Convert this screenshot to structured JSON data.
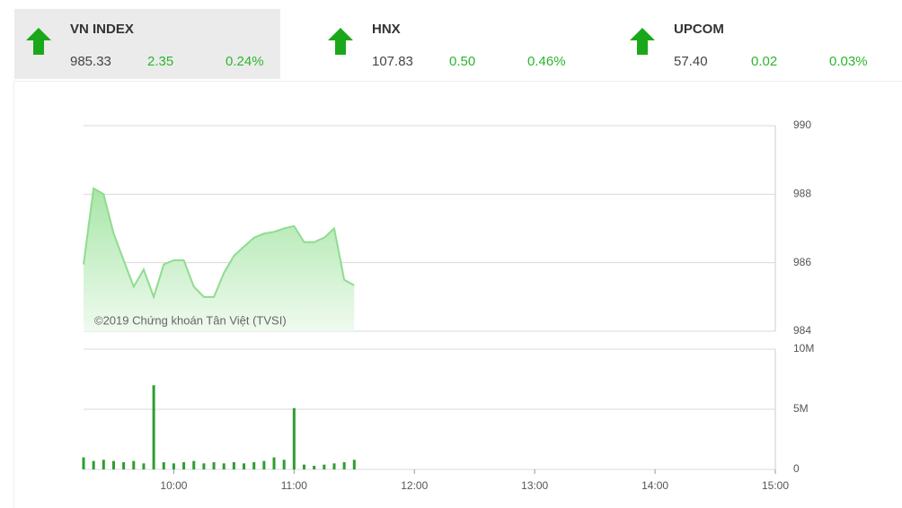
{
  "header": {
    "indices": [
      {
        "name": "VN INDEX",
        "value": "985.33",
        "change": "2.35",
        "percent": "0.24%"
      },
      {
        "name": "HNX",
        "value": "107.83",
        "change": "0.50",
        "percent": "0.46%"
      },
      {
        "name": "UPCOM",
        "value": "57.40",
        "change": "0.02",
        "percent": "0.03%"
      }
    ]
  },
  "chart_data": [
    {
      "type": "area",
      "annotation": "©2019 Chứng khoán Tân Việt (TVSI)",
      "color": "#8fdc8f",
      "x": [
        555,
        560,
        565,
        570,
        575,
        580,
        585,
        590,
        595,
        600,
        605,
        610,
        615,
        620,
        625,
        630,
        635,
        640,
        645,
        650,
        655,
        660,
        665,
        670,
        675,
        680,
        685,
        690
      ],
      "values": [
        985.95,
        988.17,
        988.0,
        986.85,
        986.07,
        985.3,
        985.8,
        985.0,
        985.95,
        986.07,
        986.07,
        985.3,
        985.0,
        985.0,
        985.7,
        986.2,
        986.47,
        986.73,
        986.85,
        986.9,
        987.0,
        987.07,
        986.6,
        986.6,
        986.73,
        987.0,
        985.5,
        985.34
      ],
      "xlim": [
        555,
        900
      ],
      "ylim": [
        984,
        990
      ],
      "yticks": [
        984,
        986,
        988,
        990
      ],
      "grid": true
    },
    {
      "type": "bar",
      "color": "#2e9e2e",
      "x": [
        555,
        560,
        565,
        570,
        575,
        580,
        585,
        590,
        595,
        600,
        605,
        610,
        615,
        620,
        625,
        630,
        635,
        640,
        645,
        650,
        655,
        660,
        665,
        670,
        675,
        680,
        685,
        690
      ],
      "values": [
        1.0,
        0.7,
        0.8,
        0.7,
        0.6,
        0.7,
        0.5,
        7.0,
        0.6,
        0.5,
        0.6,
        0.7,
        0.5,
        0.6,
        0.5,
        0.6,
        0.5,
        0.6,
        0.7,
        1.0,
        0.8,
        5.1,
        0.4,
        0.3,
        0.4,
        0.5,
        0.6,
        0.8
      ],
      "xlim": [
        555,
        900
      ],
      "xticks": [
        {
          "value": 600,
          "label": "10:00"
        },
        {
          "value": 660,
          "label": "11:00"
        },
        {
          "value": 720,
          "label": "12:00"
        },
        {
          "value": 780,
          "label": "13:00"
        },
        {
          "value": 840,
          "label": "14:00"
        },
        {
          "value": 900,
          "label": "15:00"
        }
      ],
      "ylim": [
        0,
        10
      ],
      "yticks": [
        0,
        {
          "value": 5,
          "label": "5M"
        },
        {
          "value": 10,
          "label": "10M"
        }
      ],
      "grid": true
    }
  ]
}
